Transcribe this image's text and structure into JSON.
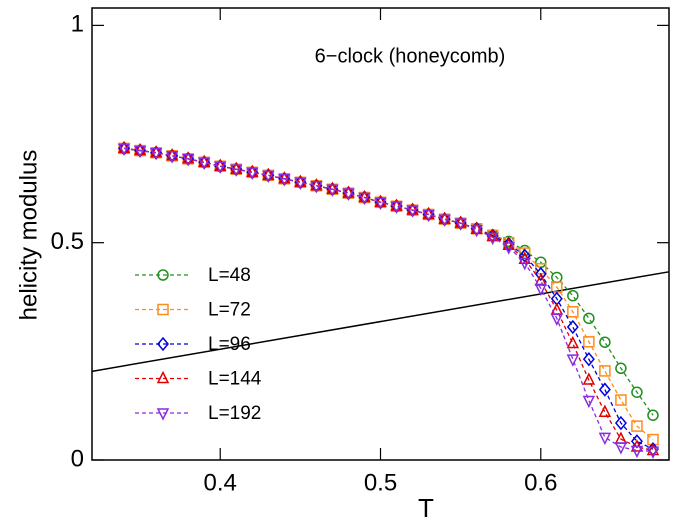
{
  "chart_data": {
    "type": "line",
    "annotation": "6−clock (honeycomb)",
    "x_label": "T",
    "y_label": "helicity modulus",
    "xlim": [
      0.32,
      0.68
    ],
    "ylim": [
      0,
      1.04
    ],
    "xticks": [
      0.4,
      0.5,
      0.6
    ],
    "yticks": [
      0,
      0.5,
      1
    ],
    "legend": "lower left",
    "x": [
      0.34,
      0.35,
      0.36,
      0.37,
      0.38,
      0.39,
      0.4,
      0.41,
      0.42,
      0.43,
      0.44,
      0.45,
      0.46,
      0.47,
      0.48,
      0.49,
      0.5,
      0.51,
      0.52,
      0.53,
      0.54,
      0.55,
      0.56,
      0.57,
      0.58,
      0.59,
      0.6,
      0.61,
      0.62,
      0.63,
      0.64,
      0.65,
      0.66,
      0.67
    ],
    "series": [
      {
        "name": "L=48",
        "color": "#1f8f1f",
        "marker": "circle",
        "values": [
          0.717,
          0.712,
          0.707,
          0.7,
          0.693,
          0.685,
          0.676,
          0.669,
          0.662,
          0.655,
          0.647,
          0.639,
          0.631,
          0.623,
          0.614,
          0.604,
          0.593,
          0.584,
          0.575,
          0.565,
          0.554,
          0.545,
          0.532,
          0.518,
          0.503,
          0.482,
          0.455,
          0.42,
          0.378,
          0.326,
          0.271,
          0.211,
          0.156,
          0.103
        ]
      },
      {
        "name": "L=72",
        "color": "#ff8c1a",
        "marker": "square",
        "values": [
          0.717,
          0.712,
          0.707,
          0.7,
          0.693,
          0.685,
          0.676,
          0.669,
          0.662,
          0.655,
          0.647,
          0.639,
          0.631,
          0.623,
          0.614,
          0.604,
          0.593,
          0.584,
          0.575,
          0.565,
          0.554,
          0.545,
          0.532,
          0.517,
          0.5,
          0.476,
          0.44,
          0.398,
          0.341,
          0.272,
          0.205,
          0.138,
          0.078,
          0.047
        ]
      },
      {
        "name": "L=96",
        "color": "#0000dd",
        "marker": "diamond",
        "values": [
          0.717,
          0.712,
          0.707,
          0.7,
          0.693,
          0.685,
          0.676,
          0.669,
          0.662,
          0.655,
          0.647,
          0.639,
          0.631,
          0.623,
          0.614,
          0.604,
          0.593,
          0.584,
          0.575,
          0.565,
          0.554,
          0.545,
          0.532,
          0.516,
          0.497,
          0.47,
          0.428,
          0.371,
          0.306,
          0.232,
          0.162,
          0.085,
          0.043,
          0.025
        ]
      },
      {
        "name": "L=144",
        "color": "#e00000",
        "marker": "triangle-up",
        "values": [
          0.717,
          0.712,
          0.707,
          0.7,
          0.693,
          0.685,
          0.676,
          0.669,
          0.662,
          0.655,
          0.647,
          0.639,
          0.631,
          0.623,
          0.614,
          0.604,
          0.593,
          0.584,
          0.575,
          0.565,
          0.554,
          0.545,
          0.531,
          0.514,
          0.494,
          0.462,
          0.412,
          0.345,
          0.268,
          0.184,
          0.11,
          0.048,
          0.03,
          0.022
        ]
      },
      {
        "name": "L=192",
        "color": "#8a2be2",
        "marker": "triangle-down",
        "values": [
          0.717,
          0.712,
          0.707,
          0.7,
          0.693,
          0.685,
          0.676,
          0.669,
          0.662,
          0.655,
          0.647,
          0.639,
          0.631,
          0.623,
          0.614,
          0.604,
          0.593,
          0.584,
          0.575,
          0.565,
          0.554,
          0.545,
          0.53,
          0.512,
          0.49,
          0.454,
          0.395,
          0.326,
          0.232,
          0.137,
          0.052,
          0.03,
          0.022,
          0.02
        ]
      }
    ],
    "reference_line": {
      "x": [
        0.32,
        0.68
      ],
      "values": [
        0.204,
        0.433
      ],
      "color": "#000000"
    }
  }
}
